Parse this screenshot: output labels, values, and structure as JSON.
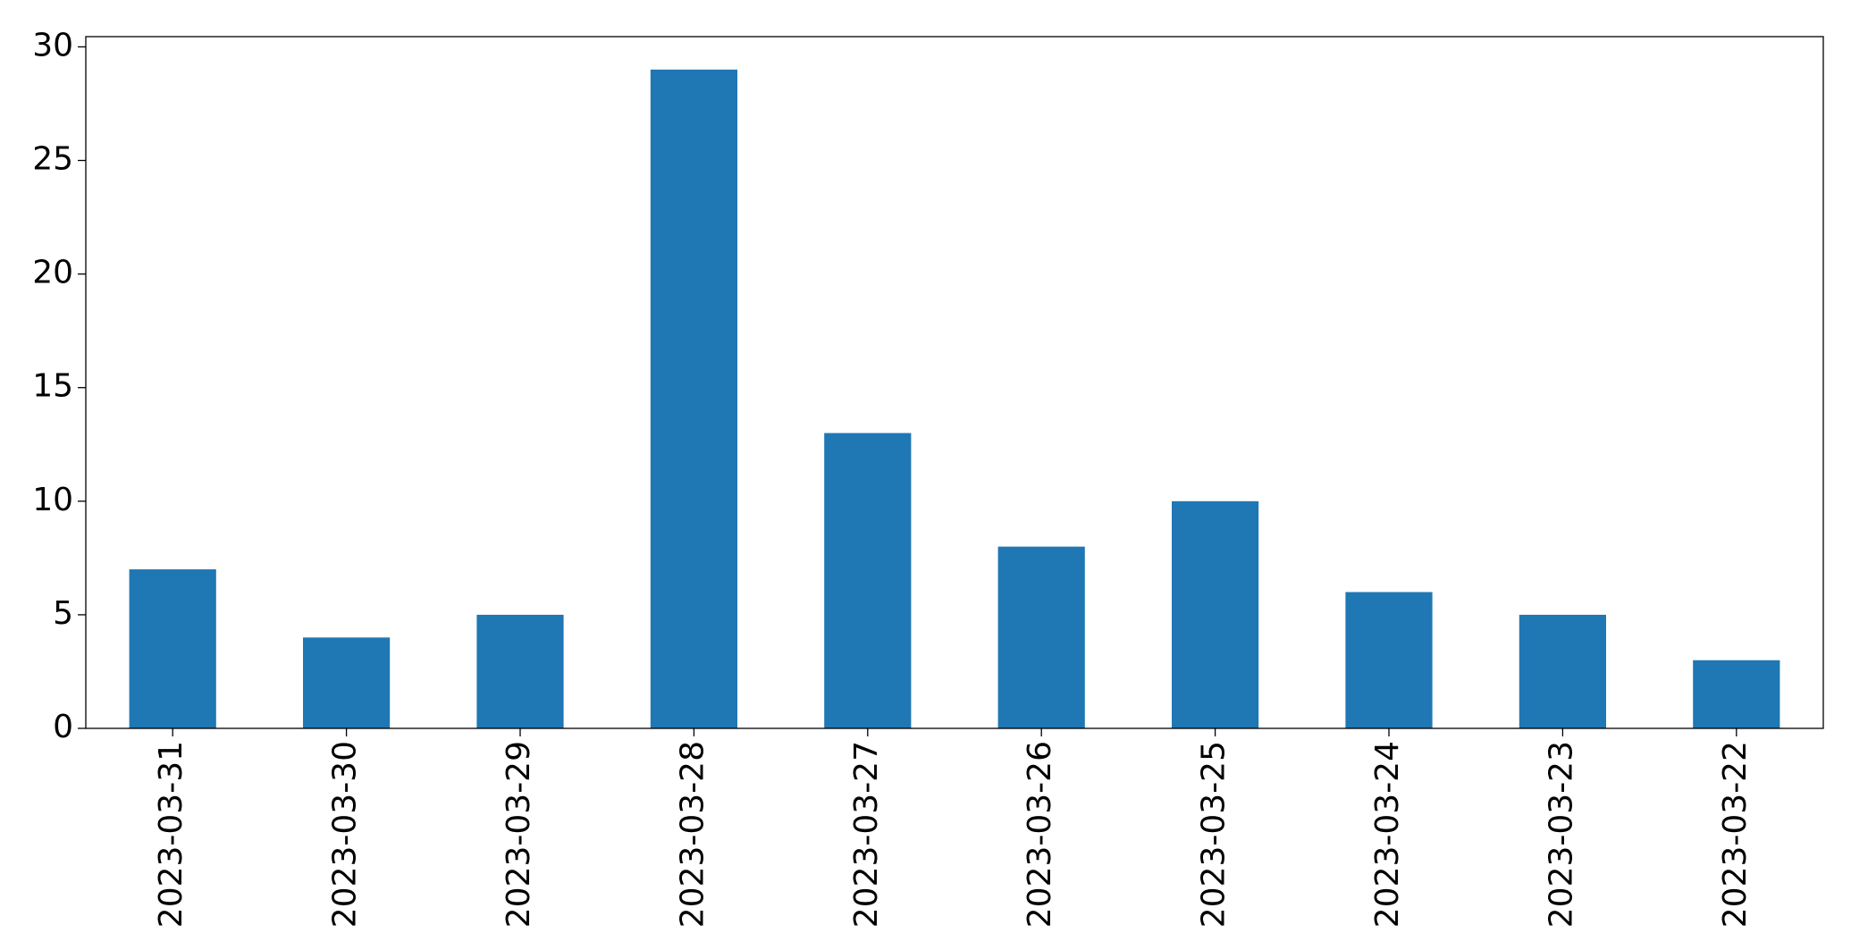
{
  "chart_data": {
    "type": "bar",
    "categories": [
      "2023-03-31",
      "2023-03-30",
      "2023-03-29",
      "2023-03-28",
      "2023-03-27",
      "2023-03-26",
      "2023-03-25",
      "2023-03-24",
      "2023-03-23",
      "2023-03-22"
    ],
    "values": [
      7,
      4,
      5,
      29,
      13,
      8,
      10,
      6,
      5,
      3
    ],
    "color": "#1f77b4",
    "ylim": [
      0,
      30.45
    ],
    "yticks": [
      0,
      5,
      10,
      15,
      20,
      25,
      30
    ],
    "grid": false
  }
}
